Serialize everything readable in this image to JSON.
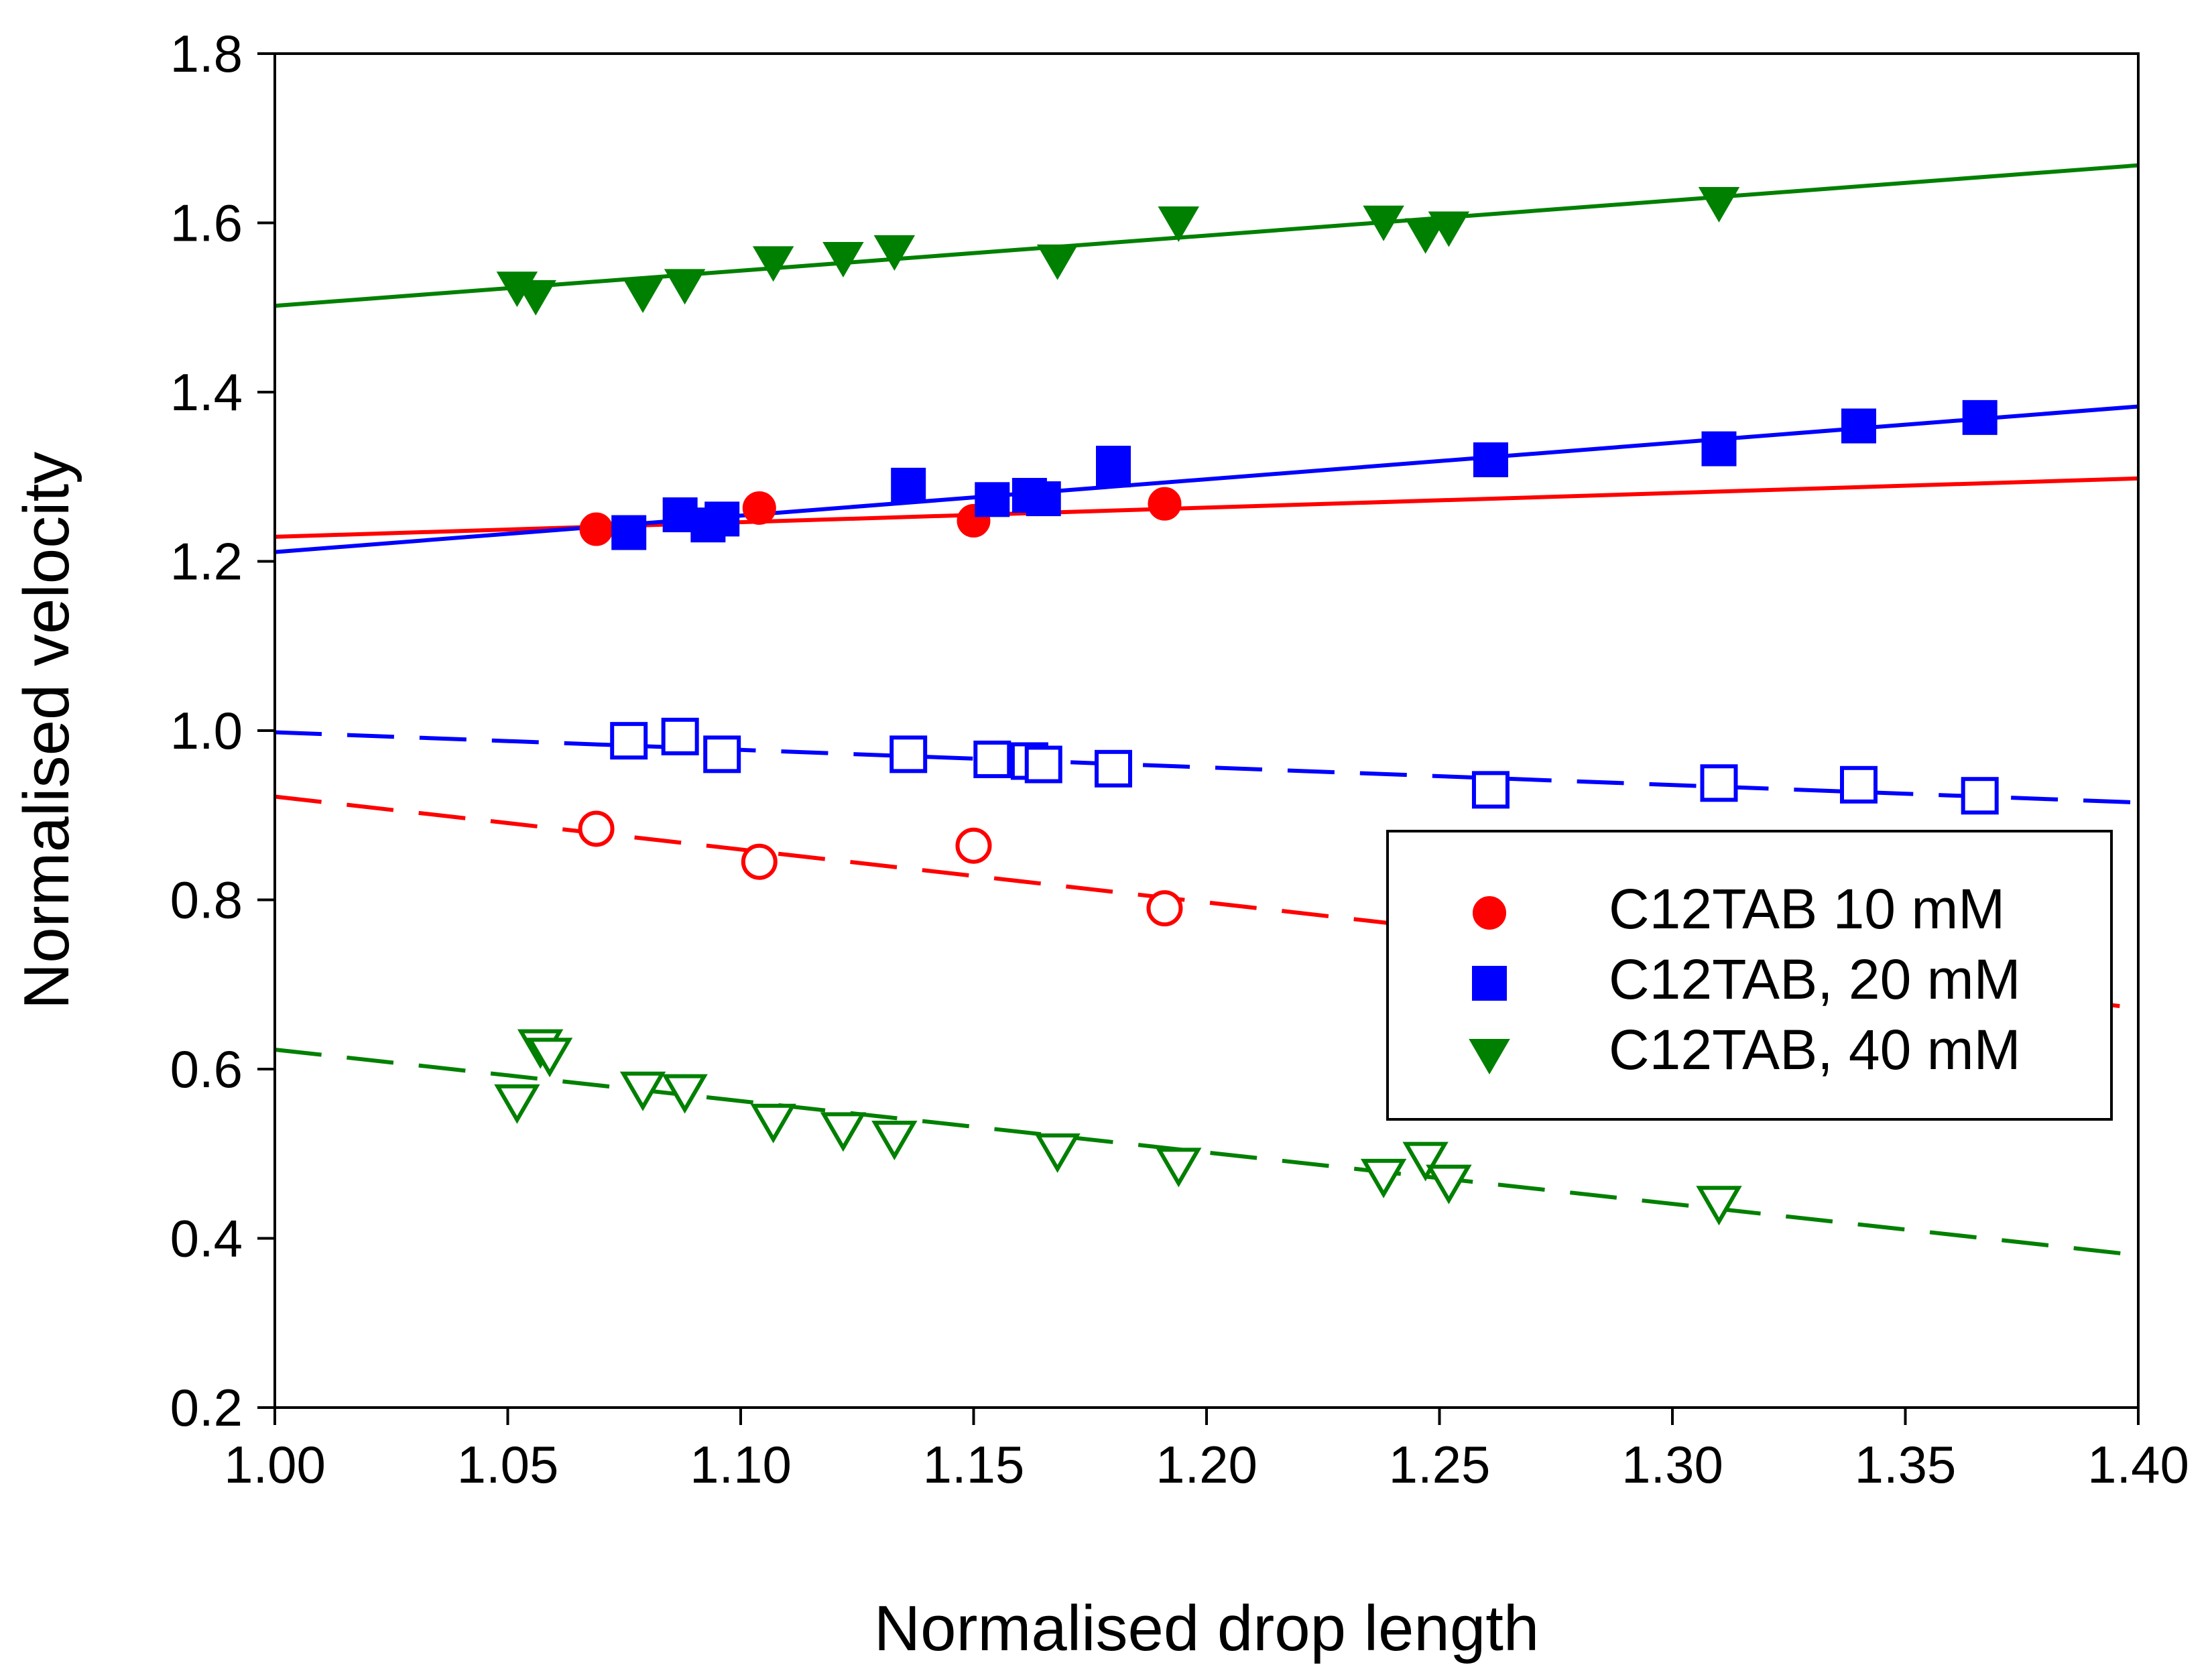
{
  "chart_data": {
    "type": "scatter",
    "title": "",
    "xlabel": "Normalised drop length",
    "ylabel": "Normalised velocity",
    "xlim": [
      1.0,
      1.4
    ],
    "ylim": [
      0.2,
      1.8
    ],
    "xticks": [
      1.0,
      1.05,
      1.1,
      1.15,
      1.2,
      1.25,
      1.3,
      1.35,
      1.4
    ],
    "yticks": [
      0.2,
      0.4,
      0.6,
      0.8,
      1.0,
      1.2,
      1.4,
      1.6,
      1.8
    ],
    "xtick_labels": [
      "1.00",
      "1.05",
      "1.10",
      "1.15",
      "1.20",
      "1.25",
      "1.30",
      "1.35",
      "1.40"
    ],
    "ytick_labels": [
      "0.2",
      "0.4",
      "0.6",
      "0.8",
      "1.0",
      "1.2",
      "1.4",
      "1.6",
      "1.8"
    ],
    "grid": false,
    "legend_position": "right",
    "legend": [
      "C12TAB 10 mM",
      "C12TAB, 20 mM",
      "C12TAB, 40 mM"
    ],
    "series": [
      {
        "name": "C12TAB 10 mM",
        "color": "#ff0000",
        "marker": "circle",
        "filled": {
          "x": [
            1.069,
            1.104,
            1.15,
            1.191
          ],
          "y": [
            1.238,
            1.263,
            1.248,
            1.268
          ]
        },
        "open": {
          "x": [
            1.069,
            1.104,
            1.15,
            1.191
          ],
          "y": [
            0.884,
            0.845,
            0.864,
            0.79
          ]
        },
        "fit_filled": {
          "x": [
            1.0,
            1.4
          ],
          "y": [
            1.229,
            1.298
          ]
        },
        "fit_open": {
          "x": [
            1.0,
            1.4
          ],
          "y": [
            0.922,
            0.672
          ]
        }
      },
      {
        "name": "C12TAB, 20 mM",
        "color": "#0000ff",
        "marker": "square",
        "filled": {
          "x": [
            1.076,
            1.087,
            1.093,
            1.096,
            1.136,
            1.154,
            1.162,
            1.165,
            1.18,
            1.18,
            1.261,
            1.31,
            1.34,
            1.366
          ],
          "y": [
            1.234,
            1.255,
            1.243,
            1.25,
            1.29,
            1.273,
            1.278,
            1.274,
            1.308,
            1.316,
            1.32,
            1.333,
            1.36,
            1.37
          ]
        },
        "open": {
          "x": [
            1.076,
            1.087,
            1.096,
            1.136,
            1.154,
            1.162,
            1.165,
            1.18,
            1.261,
            1.31,
            1.34,
            1.366
          ],
          "y": [
            0.988,
            0.993,
            0.972,
            0.972,
            0.966,
            0.964,
            0.96,
            0.955,
            0.93,
            0.938,
            0.936,
            0.923
          ]
        },
        "fit_filled": {
          "x": [
            1.0,
            1.4
          ],
          "y": [
            1.211,
            1.383
          ]
        },
        "fit_open": {
          "x": [
            1.0,
            1.4
          ],
          "y": [
            0.998,
            0.915
          ]
        }
      },
      {
        "name": "C12TAB, 40 mM",
        "color": "#008000",
        "marker": "triangle-down",
        "filled": {
          "x": [
            1.052,
            1.056,
            1.079,
            1.088,
            1.107,
            1.122,
            1.133,
            1.168,
            1.194,
            1.238,
            1.247,
            1.252,
            1.31
          ],
          "y": [
            1.525,
            1.515,
            1.518,
            1.528,
            1.555,
            1.56,
            1.568,
            1.557,
            1.602,
            1.603,
            1.588,
            1.596,
            1.625
          ]
        },
        "open": {
          "x": [
            1.052,
            1.057,
            1.059,
            1.079,
            1.088,
            1.107,
            1.122,
            1.133,
            1.168,
            1.194,
            1.238,
            1.247,
            1.252,
            1.31
          ],
          "y": [
            0.563,
            0.628,
            0.618,
            0.578,
            0.575,
            0.54,
            0.53,
            0.52,
            0.505,
            0.488,
            0.475,
            0.495,
            0.468,
            0.443
          ]
        },
        "fit_filled": {
          "x": [
            1.0,
            1.4
          ],
          "y": [
            1.502,
            1.668
          ]
        },
        "fit_open": {
          "x": [
            1.0,
            1.4
          ],
          "y": [
            0.623,
            0.38
          ]
        }
      }
    ]
  }
}
